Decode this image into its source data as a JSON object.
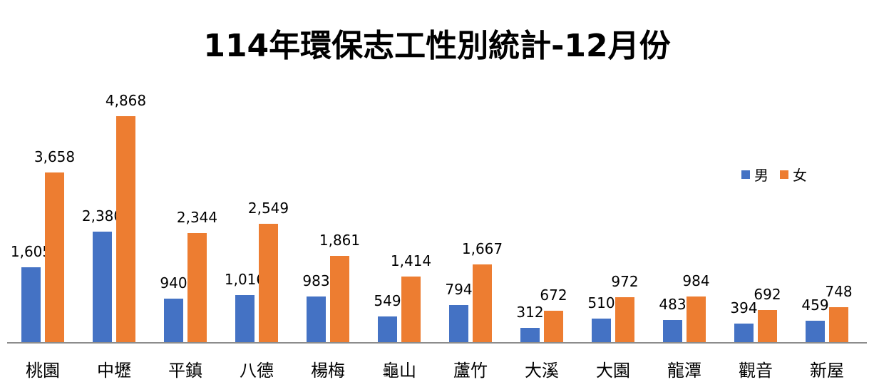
{
  "chart_data": {
    "type": "bar",
    "title": "114年環保志工性別統計-12月份",
    "xlabel": "",
    "ylabel": "",
    "categories": [
      "桃園",
      "中壢",
      "平鎮",
      "八德",
      "楊梅",
      "龜山",
      "蘆竹",
      "大溪",
      "大園",
      "龍潭",
      "觀音",
      "新屋"
    ],
    "series": [
      {
        "name": "男",
        "color": "#4472c4",
        "values": [
          1605,
          2380,
          940,
          1016,
          983,
          549,
          794,
          312,
          510,
          483,
          394,
          459
        ]
      },
      {
        "name": "女",
        "color": "#ed7d31",
        "values": [
          3658,
          4868,
          2344,
          2549,
          1861,
          1414,
          1667,
          672,
          972,
          984,
          692,
          748
        ]
      }
    ],
    "value_labels": {
      "男": [
        "1,605",
        "2,380",
        "940",
        "1,016",
        "983",
        "549",
        "794",
        "312",
        "510",
        "483",
        "394",
        "459"
      ],
      "女": [
        "3,658",
        "4,868",
        "2,344",
        "2,549",
        "1,861",
        "1,414",
        "1,667",
        "672",
        "972",
        "984",
        "692",
        "748"
      ]
    },
    "legend_position": "right",
    "grid": false,
    "ylim": [
      0,
      5000
    ]
  },
  "legend": {
    "male": "男",
    "female": "女"
  }
}
